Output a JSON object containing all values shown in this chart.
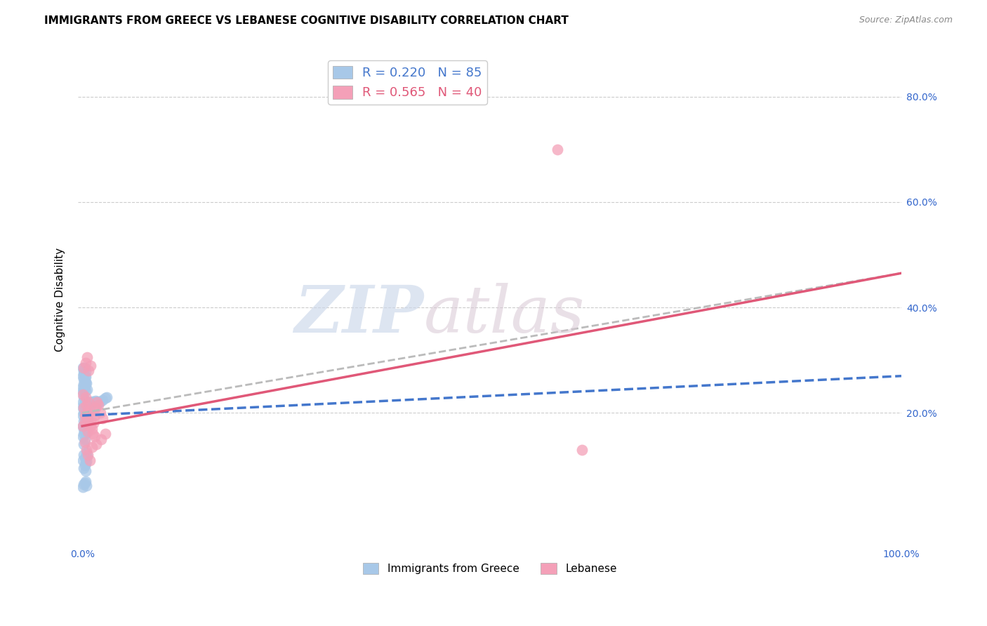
{
  "title": "IMMIGRANTS FROM GREECE VS LEBANESE COGNITIVE DISABILITY CORRELATION CHART",
  "source": "Source: ZipAtlas.com",
  "ylabel": "Cognitive Disability",
  "xlim": [
    -0.005,
    1.0
  ],
  "ylim": [
    -0.05,
    0.88
  ],
  "greece_R": 0.22,
  "greece_N": 85,
  "lebanese_R": 0.565,
  "lebanese_N": 40,
  "greece_color": "#a8c8e8",
  "lebanese_color": "#f4a0b8",
  "greece_line_color": "#4477cc",
  "lebanese_line_color": "#e05878",
  "dash_line_color": "#bbbbbb",
  "greece_scatter_x": [
    0.001,
    0.001,
    0.001,
    0.001,
    0.001,
    0.002,
    0.002,
    0.002,
    0.002,
    0.002,
    0.002,
    0.002,
    0.003,
    0.003,
    0.003,
    0.003,
    0.003,
    0.003,
    0.004,
    0.004,
    0.004,
    0.004,
    0.004,
    0.005,
    0.005,
    0.005,
    0.005,
    0.006,
    0.006,
    0.006,
    0.007,
    0.007,
    0.008,
    0.008,
    0.009,
    0.01,
    0.011,
    0.012,
    0.013,
    0.014,
    0.015,
    0.016,
    0.017,
    0.018,
    0.019,
    0.02,
    0.022,
    0.025,
    0.028,
    0.03,
    0.001,
    0.001,
    0.002,
    0.002,
    0.002,
    0.003,
    0.003,
    0.003,
    0.004,
    0.004,
    0.001,
    0.002,
    0.002,
    0.003,
    0.003,
    0.004,
    0.004,
    0.005,
    0.005,
    0.006,
    0.001,
    0.001,
    0.002,
    0.002,
    0.003,
    0.003,
    0.004,
    0.004,
    0.005,
    0.006,
    0.001,
    0.002,
    0.003,
    0.004,
    0.005
  ],
  "greece_scatter_y": [
    0.22,
    0.195,
    0.175,
    0.155,
    0.21,
    0.23,
    0.215,
    0.2,
    0.185,
    0.17,
    0.16,
    0.14,
    0.225,
    0.21,
    0.195,
    0.18,
    0.165,
    0.15,
    0.22,
    0.205,
    0.19,
    0.175,
    0.16,
    0.215,
    0.2,
    0.185,
    0.17,
    0.21,
    0.195,
    0.18,
    0.205,
    0.19,
    0.215,
    0.2,
    0.21,
    0.215,
    0.22,
    0.218,
    0.222,
    0.219,
    0.221,
    0.223,
    0.22,
    0.222,
    0.218,
    0.22,
    0.222,
    0.225,
    0.228,
    0.23,
    0.27,
    0.285,
    0.265,
    0.28,
    0.275,
    0.27,
    0.285,
    0.26,
    0.278,
    0.268,
    0.11,
    0.095,
    0.12,
    0.1,
    0.115,
    0.105,
    0.09,
    0.125,
    0.108,
    0.118,
    0.25,
    0.24,
    0.255,
    0.245,
    0.252,
    0.248,
    0.258,
    0.242,
    0.256,
    0.244,
    0.06,
    0.065,
    0.068,
    0.07,
    0.062
  ],
  "lebanese_scatter_x": [
    0.001,
    0.002,
    0.003,
    0.004,
    0.005,
    0.006,
    0.007,
    0.008,
    0.009,
    0.01,
    0.011,
    0.012,
    0.013,
    0.014,
    0.015,
    0.016,
    0.018,
    0.02,
    0.022,
    0.025,
    0.002,
    0.004,
    0.006,
    0.008,
    0.01,
    0.003,
    0.005,
    0.007,
    0.009,
    0.012,
    0.001,
    0.003,
    0.005,
    0.007,
    0.015,
    0.017,
    0.023,
    0.028,
    0.58,
    0.61
  ],
  "lebanese_scatter_y": [
    0.235,
    0.21,
    0.195,
    0.23,
    0.215,
    0.2,
    0.185,
    0.22,
    0.205,
    0.175,
    0.19,
    0.17,
    0.16,
    0.18,
    0.195,
    0.21,
    0.22,
    0.215,
    0.2,
    0.19,
    0.285,
    0.295,
    0.305,
    0.28,
    0.29,
    0.145,
    0.13,
    0.12,
    0.11,
    0.135,
    0.175,
    0.185,
    0.195,
    0.165,
    0.155,
    0.14,
    0.15,
    0.16,
    0.7,
    0.13
  ],
  "greece_line_x0": 0.0,
  "greece_line_y0": 0.195,
  "greece_line_x1": 1.0,
  "greece_line_y1": 0.27,
  "lebanese_line_x0": 0.0,
  "lebanese_line_y0": 0.175,
  "lebanese_line_x1": 1.0,
  "lebanese_line_y1": 0.465,
  "dash_line_x0": 0.0,
  "dash_line_y0": 0.2,
  "dash_line_x1": 1.0,
  "dash_line_y1": 0.465
}
